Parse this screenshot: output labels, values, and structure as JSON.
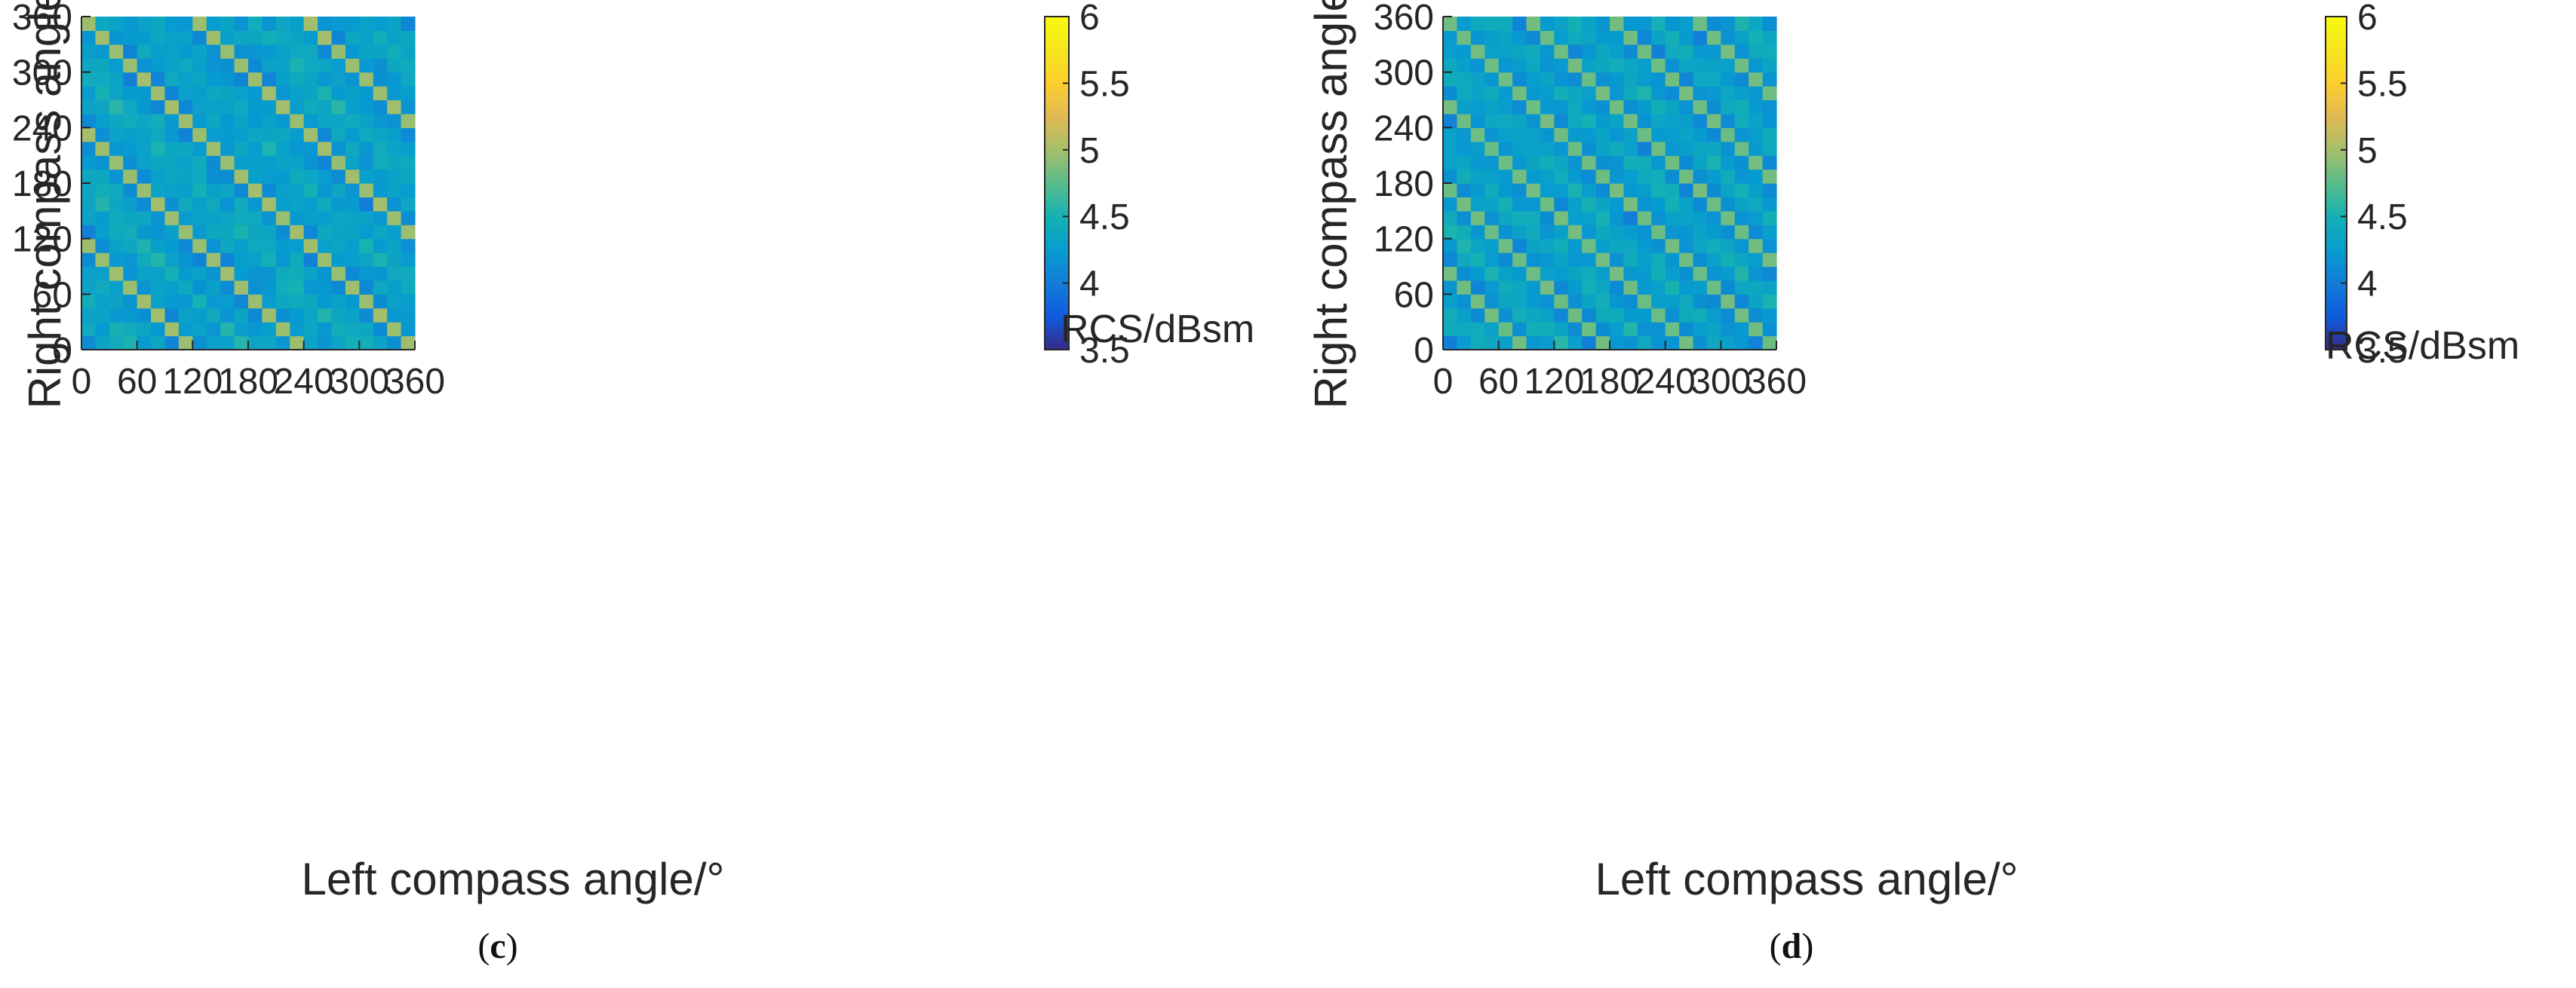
{
  "chart_data": [
    {
      "type": "heatmap",
      "panel_label": "c",
      "title": "",
      "xlabel": "Left compass angle/°",
      "ylabel": "Right compass angle/°",
      "xlim": [
        0,
        360
      ],
      "ylim": [
        0,
        360
      ],
      "xticks": [
        "0",
        "60",
        "120",
        "180",
        "240",
        "300",
        "360"
      ],
      "yticks": [
        "0",
        "60",
        "120",
        "180",
        "240",
        "300",
        "360"
      ],
      "grid": false,
      "cells": 24,
      "cell_size_deg": 15,
      "diagonal_period_cells": 8,
      "diagonal_peak_dbsm": 5.0,
      "colorbar": {
        "label": "RCS/dBsm",
        "min": 3.5,
        "max": 6,
        "ticks": [
          "3.5",
          "4",
          "4.5",
          "5",
          "5.5",
          "6"
        ]
      }
    },
    {
      "type": "heatmap",
      "panel_label": "d",
      "title": "",
      "xlabel": "Left compass angle/°",
      "ylabel": "Right compass angle/°",
      "xlim": [
        0,
        360
      ],
      "ylim": [
        0,
        360
      ],
      "xticks": [
        "0",
        "60",
        "120",
        "180",
        "240",
        "300",
        "360"
      ],
      "yticks": [
        "0",
        "60",
        "120",
        "180",
        "240",
        "300",
        "360"
      ],
      "grid": false,
      "cells": 24,
      "cell_size_deg": 15,
      "diagonal_period_cells": 6,
      "diagonal_peak_dbsm": 4.85,
      "colorbar": {
        "label": "RCS/dBsm",
        "min": 3.5,
        "max": 6,
        "ticks": [
          "3.5",
          "4",
          "4.5",
          "5",
          "5.5",
          "6"
        ]
      }
    }
  ],
  "captions": {
    "c": "c",
    "d": "d"
  },
  "colors": {
    "text": "#262626",
    "axis": "#262626",
    "background": "#ffffff"
  }
}
